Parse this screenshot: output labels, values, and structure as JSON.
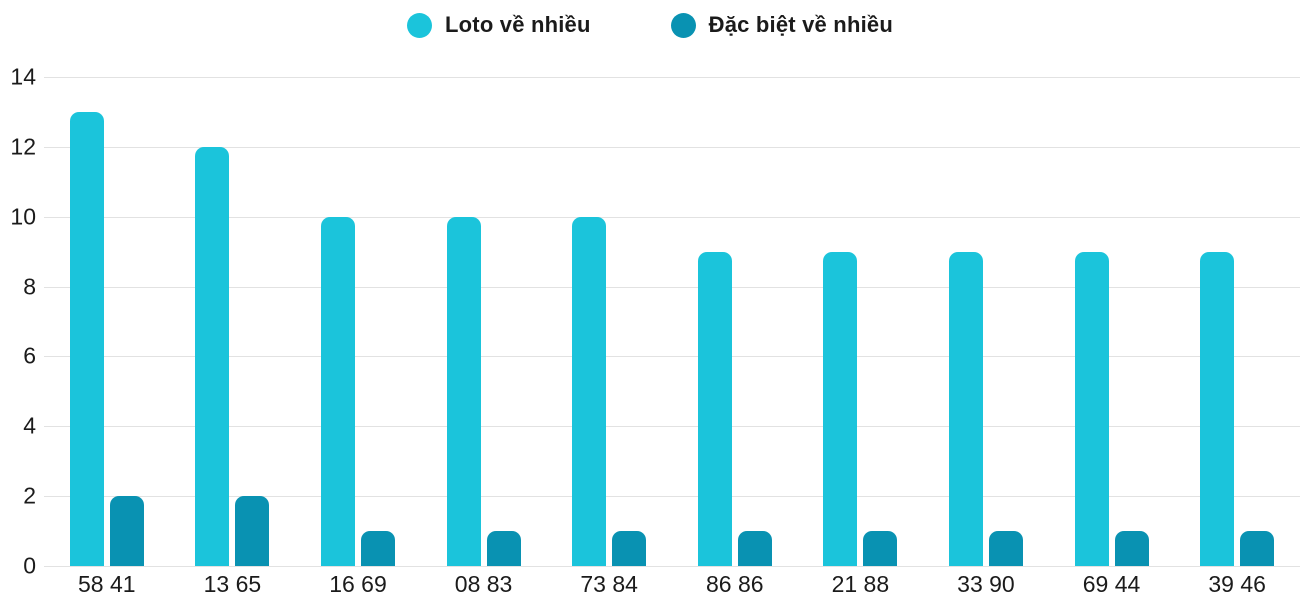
{
  "legend": [
    {
      "label": "Loto về nhiều",
      "color": "#1BC4DB"
    },
    {
      "label": "Đặc biệt về nhiều",
      "color": "#0992B2"
    }
  ],
  "colors": {
    "series_loto": "#1BC4DB",
    "series_dac_biet": "#0992B2",
    "gridline": "#e2e2e2",
    "text": "#1b1b1b",
    "background": "#ffffff"
  },
  "chart_data": {
    "type": "bar",
    "title": "",
    "xlabel": "",
    "ylabel": "",
    "categories": [
      "58 41",
      "13 65",
      "16 69",
      "08 83",
      "73 84",
      "86 86",
      "21 88",
      "33 90",
      "69 44",
      "39 46"
    ],
    "series": [
      {
        "name": "Loto về nhiều",
        "color": "#1BC4DB",
        "values": [
          13,
          12,
          10,
          10,
          10,
          9,
          9,
          9,
          9,
          9
        ]
      },
      {
        "name": "Đặc biệt về nhiều",
        "color": "#0992B2",
        "values": [
          2,
          2,
          1,
          1,
          1,
          1,
          1,
          1,
          1,
          1
        ]
      }
    ],
    "ylim": [
      0,
      14
    ],
    "yticks": [
      0,
      2,
      4,
      6,
      8,
      10,
      12,
      14
    ],
    "grid": true,
    "legend_position": "top"
  }
}
